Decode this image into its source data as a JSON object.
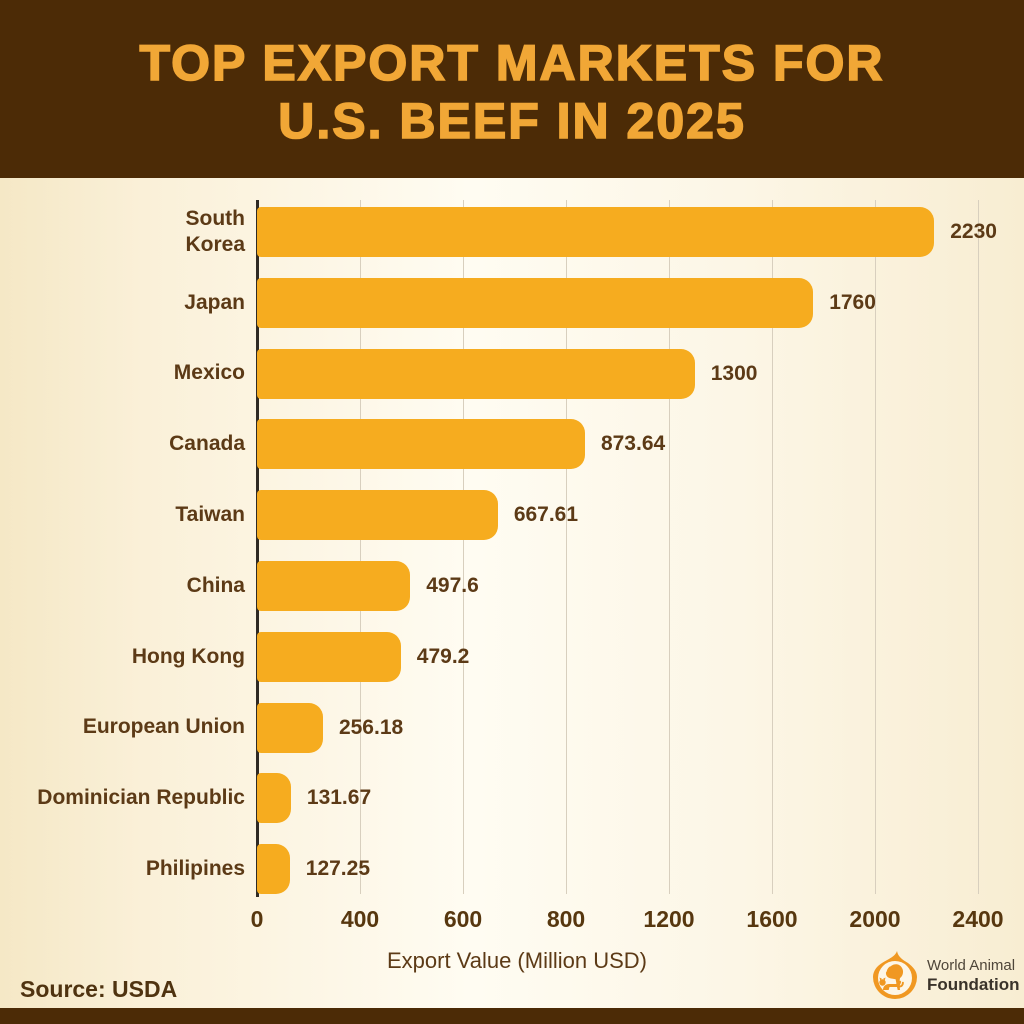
{
  "header": {
    "title_line1": "TOP EXPORT MARKETS FOR",
    "title_line2": "U.S. BEEF IN 2025"
  },
  "chart_data": {
    "type": "bar",
    "orientation": "horizontal",
    "title": "Top Export Markets for U.S. Beef in 2025",
    "categories": [
      "South\nKorea",
      "Japan",
      "Mexico",
      "Canada",
      "Taiwan",
      "China",
      "Hong Kong",
      "European Union",
      "Dominician Republic",
      "Philipines"
    ],
    "values": [
      2230,
      1760,
      1300,
      873.64,
      667.61,
      497.6,
      479.2,
      256.18,
      131.67,
      127.25
    ],
    "value_labels": [
      "2230",
      "1760",
      "1300",
      "873.64",
      "667.61",
      "497.6",
      "479.2",
      "256.18",
      "131.67",
      "127.25"
    ],
    "xlabel": "Export Value (Million USD)",
    "x_ticks": [
      0,
      400,
      600,
      800,
      1200,
      1600,
      2000,
      2400
    ],
    "x_tick_labels": [
      "0",
      "400",
      "600",
      "800",
      "1200",
      "1600",
      "2000",
      "2400"
    ],
    "xlim": [
      0,
      2400
    ],
    "grid": true,
    "legend": false,
    "bar_color": "#F6AC1F",
    "axis_text_color": "#5C3A16"
  },
  "footer": {
    "source": "Source: USDA",
    "logo_line1": "World Animal",
    "logo_line2": "Foundation"
  },
  "colors": {
    "header_bg": "#4C2B06",
    "title_text": "#F1A736",
    "bar": "#F6AC1F",
    "text_dark_brown": "#5C3A16",
    "gridline": "#D8CFBE",
    "axis_line": "#2F2A24",
    "background_left": "#F5E8C6",
    "background_center": "#FFFCF2",
    "background_right": "#F8EDD2",
    "footer_strip": "#4C2B06",
    "logo_orange": "#F09822",
    "logo_text": "#4F4639"
  }
}
